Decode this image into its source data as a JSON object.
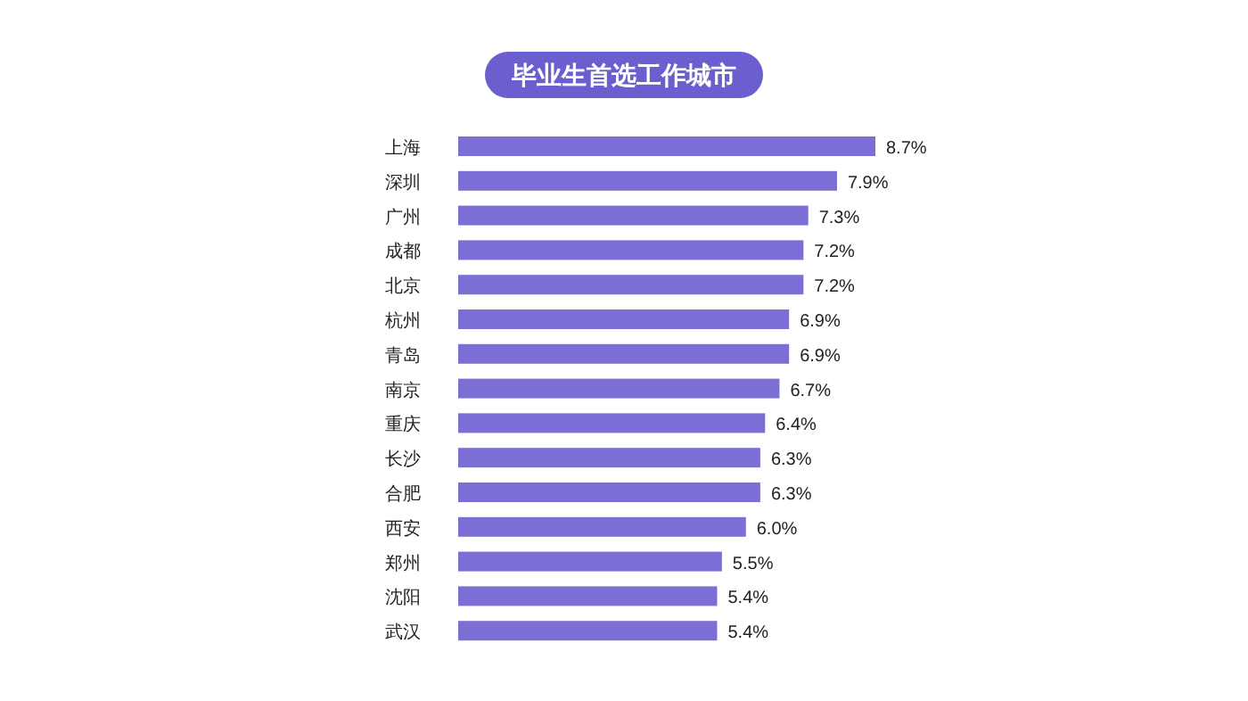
{
  "chart_data": {
    "type": "bar",
    "orientation": "horizontal",
    "title": "毕业生首选工作城市",
    "categories": [
      "上海",
      "深圳",
      "广州",
      "成都",
      "北京",
      "杭州",
      "青岛",
      "南京",
      "重庆",
      "长沙",
      "合肥",
      "西安",
      "郑州",
      "沈阳",
      "武汉"
    ],
    "values": [
      8.7,
      7.9,
      7.3,
      7.2,
      7.2,
      6.9,
      6.9,
      6.7,
      6.4,
      6.3,
      6.3,
      6.0,
      5.5,
      5.4,
      5.4
    ],
    "value_labels": [
      "8.7%",
      "7.9%",
      "7.3%",
      "7.2%",
      "7.2%",
      "6.9%",
      "6.9%",
      "6.7%",
      "6.4%",
      "6.3%",
      "6.3%",
      "6.0%",
      "5.5%",
      "5.4%",
      "5.4%"
    ],
    "color": "#7b6fd6"
  }
}
